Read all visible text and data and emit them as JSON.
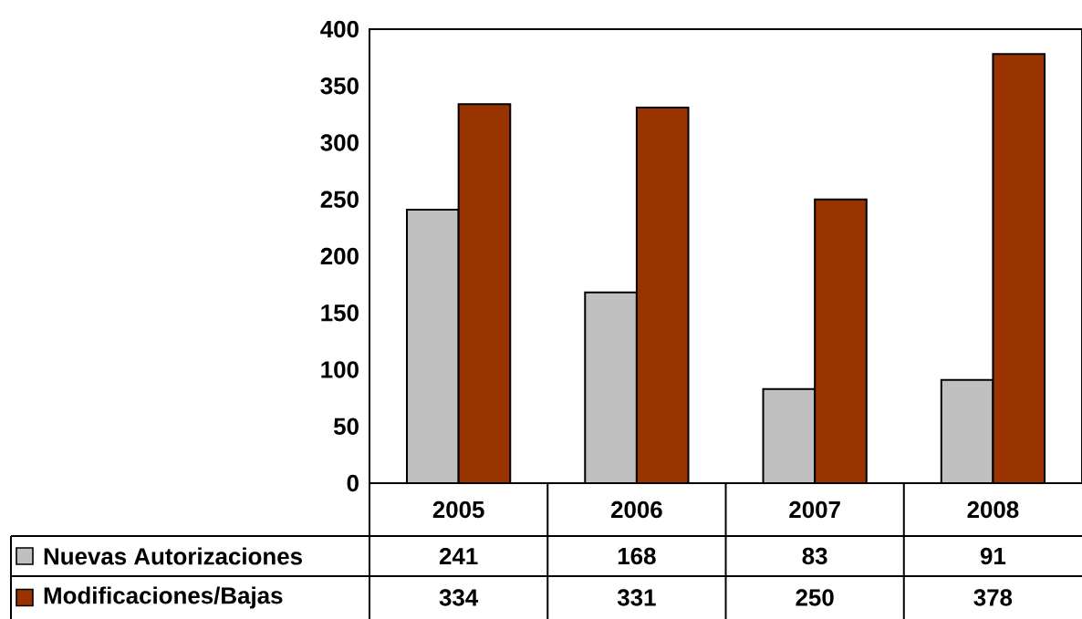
{
  "chart_data": {
    "type": "bar",
    "categories": [
      "2005",
      "2006",
      "2007",
      "2008"
    ],
    "series": [
      {
        "name": "Nuevas Autorizaciones",
        "color": "#c0c0c0",
        "values": [
          241,
          168,
          83,
          91
        ]
      },
      {
        "name": "Modificaciones/Bajas",
        "color": "#993300",
        "values": [
          334,
          331,
          250,
          378
        ]
      }
    ],
    "ylim": [
      0,
      400
    ],
    "yticks": [
      0,
      50,
      100,
      150,
      200,
      250,
      300,
      350,
      400
    ],
    "data_labels": true,
    "legend": "bottom"
  }
}
